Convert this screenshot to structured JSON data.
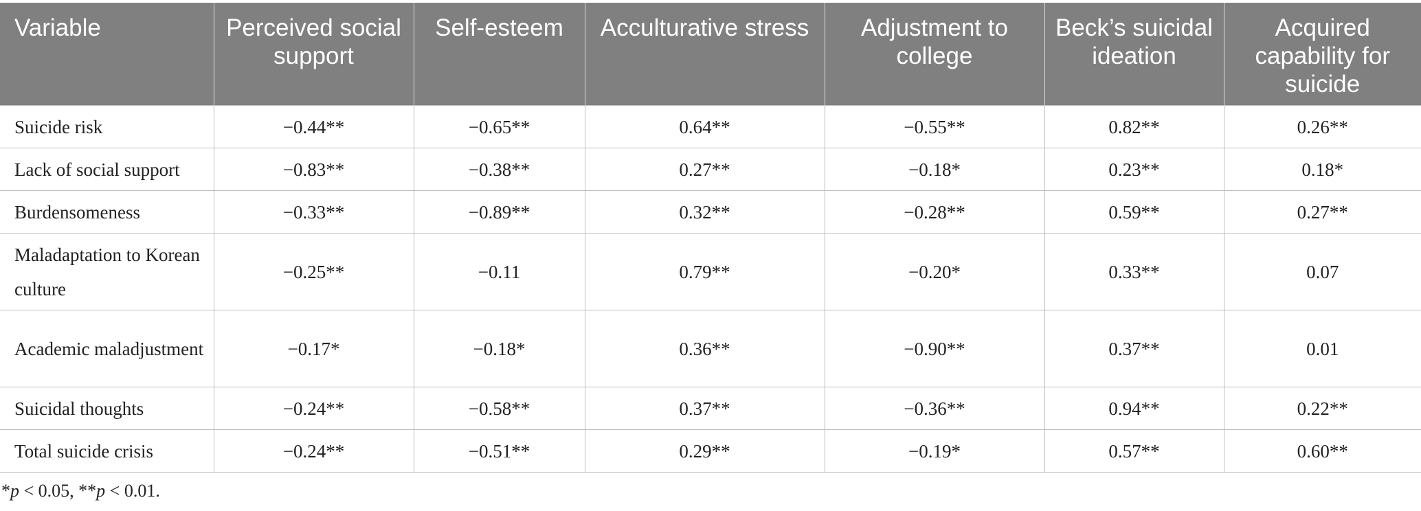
{
  "table": {
    "headers": [
      "Variable",
      "Perceived social support",
      "Self-esteem",
      "Acculturative stress",
      "Adjustment to college",
      "Beck’s suicidal ideation",
      "Acquired capability for suicide"
    ],
    "rows": [
      {
        "label": "Suicide risk",
        "values": [
          "−0.44**",
          "−0.65**",
          "0.64**",
          "−0.55**",
          "0.82**",
          "0.26**"
        ]
      },
      {
        "label": "Lack of social support",
        "values": [
          "−0.83**",
          "−0.38**",
          "0.27**",
          "−0.18*",
          "0.23**",
          "0.18*"
        ]
      },
      {
        "label": "Burdensomeness",
        "values": [
          "−0.33**",
          "−0.89**",
          "0.32**",
          "−0.28**",
          "0.59**",
          "0.27**"
        ]
      },
      {
        "label": "Maladaptation to Korean culture",
        "values": [
          "−0.25**",
          "−0.11",
          "0.79**",
          "−0.20*",
          "0.33**",
          "0.07"
        ]
      },
      {
        "label": "Academic maladjustment",
        "values": [
          "−0.17*",
          "−0.18*",
          "0.36**",
          "−0.90**",
          "0.37**",
          "0.01"
        ]
      },
      {
        "label": "Suicidal thoughts",
        "values": [
          "−0.24**",
          "−0.58**",
          "0.37**",
          "−0.36**",
          "0.94**",
          "0.22**"
        ]
      },
      {
        "label": "Total suicide crisis",
        "values": [
          "−0.24**",
          "−0.51**",
          "0.29**",
          "−0.19*",
          "0.57**",
          "0.60**"
        ]
      }
    ]
  },
  "footnote": {
    "p1_prefix": "*",
    "p1_var": "p",
    "p1_rest": " < 0.05, ",
    "p2_prefix": "**",
    "p2_var": "p",
    "p2_rest": " < 0.01."
  }
}
